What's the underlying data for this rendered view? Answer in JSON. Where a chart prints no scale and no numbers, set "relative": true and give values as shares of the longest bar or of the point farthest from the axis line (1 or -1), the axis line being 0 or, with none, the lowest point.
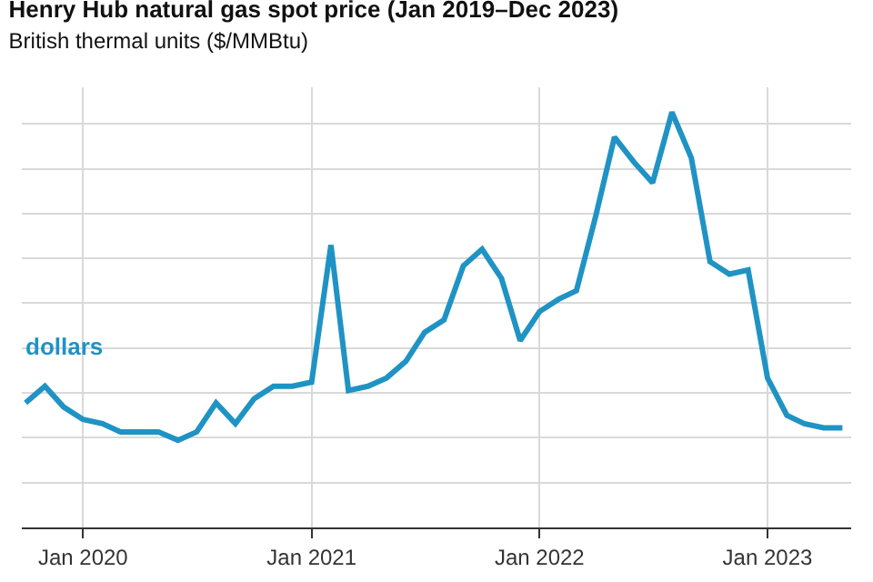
{
  "chart_data": {
    "type": "line",
    "title": "Henry Hub natural gas spot price (Jan 2019–Dec 2023)",
    "subtitle": "British thermal units ($/MMBtu)",
    "relative": true,
    "grid": true,
    "legend": false,
    "marker": "none",
    "line_style": "solid",
    "x": [
      "2019-10",
      "2019-11",
      "2019-12",
      "2020-01",
      "2020-02",
      "2020-03",
      "2020-04",
      "2020-05",
      "2020-06",
      "2020-07",
      "2020-08",
      "2020-09",
      "2020-10",
      "2020-11",
      "2020-12",
      "2021-01",
      "2021-02",
      "2021-03",
      "2021-04",
      "2021-05",
      "2021-06",
      "2021-07",
      "2021-08",
      "2021-09",
      "2021-10",
      "2021-11",
      "2021-12",
      "2022-01",
      "2022-02",
      "2022-03",
      "2022-04",
      "2022-05",
      "2022-06",
      "2022-07",
      "2022-08",
      "2022-09",
      "2022-10",
      "2022-11",
      "2022-12",
      "2023-01",
      "2023-02",
      "2023-03",
      "2023-04",
      "2023-05"
    ],
    "xlim": [
      "2019-09-25",
      "2023-05-15"
    ],
    "xticks": [
      {
        "value": "2020-01",
        "label": "Jan 2020"
      },
      {
        "value": "2021-01",
        "label": "Jan 2021"
      },
      {
        "value": "2022-01",
        "label": "Jan 2022"
      },
      {
        "value": "2023-01",
        "label": "Jan 2023"
      }
    ],
    "series": [
      {
        "name": "dollars",
        "color": "#1f93c4",
        "values": [
          0.3,
          0.34,
          0.29,
          0.26,
          0.25,
          0.23,
          0.23,
          0.23,
          0.21,
          0.23,
          0.3,
          0.25,
          0.31,
          0.34,
          0.34,
          0.35,
          0.68,
          0.33,
          0.34,
          0.36,
          0.4,
          0.47,
          0.5,
          0.63,
          0.67,
          0.6,
          0.45,
          0.52,
          0.55,
          0.57,
          0.75,
          0.94,
          0.88,
          0.83,
          1,
          0.89,
          0.64,
          0.61,
          0.62,
          0.36,
          0.27,
          0.25,
          0.24,
          0.24
        ]
      }
    ]
  }
}
